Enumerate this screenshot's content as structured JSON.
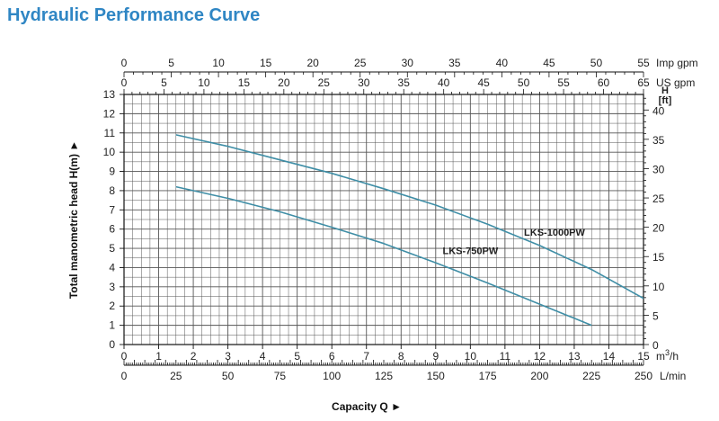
{
  "chart_data": {
    "type": "line",
    "title": "Hydraulic Performance Curve",
    "xlabel": "Capacity Q",
    "ylabel": "Total manometric head H(m)",
    "arrow_glyph": "►",
    "grid": true,
    "colors": {
      "curve": "#3f8ea6",
      "grid": "#555555",
      "frame": "#111111",
      "title": "#2f86c4"
    },
    "x_axis": {
      "unit": "m3/h",
      "unit_label": "m3/h",
      "range": [
        0,
        15
      ],
      "ticks": [
        "0",
        "1",
        "2",
        "3",
        "4",
        "5",
        "6",
        "7",
        "8",
        "9",
        "10",
        "11",
        "12",
        "13",
        "14",
        "15"
      ]
    },
    "x_axis_lmin": {
      "unit": "L/min",
      "range": [
        0,
        250
      ],
      "ticks": [
        "0",
        "25",
        "50",
        "75",
        "100",
        "125",
        "150",
        "175",
        "200",
        "225",
        "250"
      ]
    },
    "x_axis_us_gpm": {
      "unit": "US gpm",
      "range": [
        0,
        65
      ],
      "ticks": [
        "0",
        "5",
        "10",
        "15",
        "20",
        "25",
        "30",
        "35",
        "40",
        "45",
        "50",
        "55",
        "60",
        "65"
      ]
    },
    "x_axis_imp_gpm": {
      "unit": "Imp gpm",
      "range": [
        0,
        55
      ],
      "ticks": [
        "0",
        "5",
        "10",
        "15",
        "20",
        "25",
        "30",
        "35",
        "40",
        "45",
        "50",
        "55"
      ]
    },
    "y_axis": {
      "unit": "m",
      "range": [
        0,
        13
      ],
      "ticks": [
        "0",
        "1",
        "2",
        "3",
        "4",
        "5",
        "6",
        "7",
        "8",
        "9",
        "10",
        "11",
        "12",
        "13"
      ]
    },
    "y_axis_ft": {
      "unit_label": "H [ft]",
      "range": [
        0,
        42.65
      ],
      "ticks": [
        "0",
        "5",
        "10",
        "15",
        "20",
        "25",
        "30",
        "35",
        "40"
      ]
    },
    "series": [
      {
        "name": "LKS-1000PW",
        "x": [
          1.5,
          3,
          4.5,
          6,
          7.5,
          9,
          10.5,
          12,
          13.5,
          15
        ],
        "y": [
          10.9,
          10.3,
          9.6,
          8.9,
          8.1,
          7.25,
          6.25,
          5.15,
          3.9,
          2.4
        ]
      },
      {
        "name": "LKS-750PW",
        "x": [
          1.5,
          3,
          4.5,
          6,
          7.5,
          9,
          10.5,
          12,
          13.5
        ],
        "y": [
          8.2,
          7.6,
          6.9,
          6.1,
          5.25,
          4.25,
          3.2,
          2.1,
          1.0
        ]
      }
    ]
  }
}
